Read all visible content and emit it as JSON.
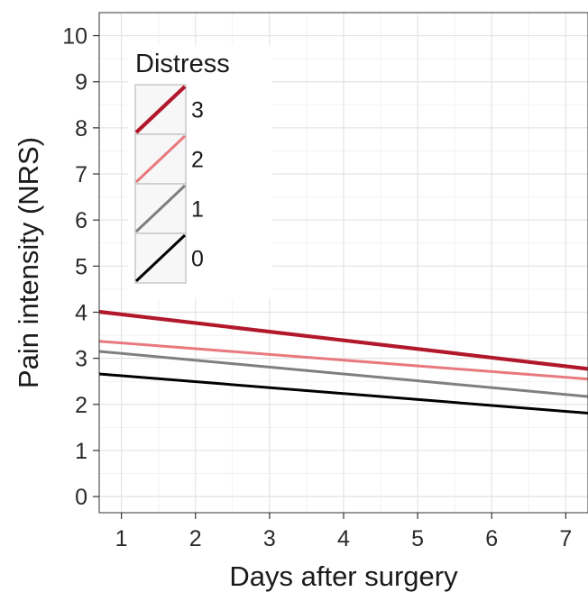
{
  "chart_data": {
    "type": "line",
    "xlabel": "Days after surgery",
    "ylabel": "Pain intensity (NRS)",
    "xlim": [
      0.7,
      7.3
    ],
    "ylim": [
      -0.35,
      10.5
    ],
    "x_ticks": [
      "1",
      "2",
      "3",
      "4",
      "5",
      "6",
      "7"
    ],
    "y_ticks": [
      "0",
      "1",
      "2",
      "3",
      "4",
      "5",
      "6",
      "7",
      "8",
      "9",
      "10"
    ],
    "grid": true,
    "legend": {
      "title": "Distress",
      "position": "top-left",
      "entries": [
        "3",
        "2",
        "1",
        "0"
      ]
    },
    "series": [
      {
        "name": "3",
        "color": "#b2182b",
        "x": [
          0.7,
          7.3
        ],
        "y": [
          4.01,
          2.77
        ]
      },
      {
        "name": "2",
        "color": "#e8797d",
        "x": [
          0.7,
          7.3
        ],
        "y": [
          3.37,
          2.55
        ]
      },
      {
        "name": "1",
        "color": "#7f7f7f",
        "x": [
          0.7,
          7.3
        ],
        "y": [
          3.15,
          2.17
        ]
      },
      {
        "name": "0",
        "color": "#000000",
        "x": [
          0.7,
          7.3
        ],
        "y": [
          2.66,
          1.81
        ]
      }
    ]
  }
}
